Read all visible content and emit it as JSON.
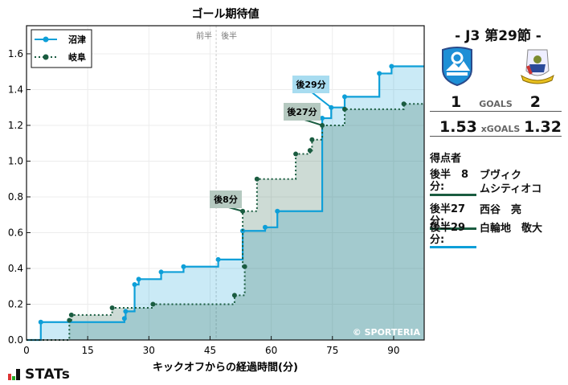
{
  "chart_data": {
    "type": "line",
    "step": true,
    "title": "ゴール期待値",
    "xlabel": "キックオフからの経過時間(分)",
    "ylabel": "",
    "xlim": [
      0,
      97.5
    ],
    "ylim": [
      0,
      1.757
    ],
    "xticks": [
      0,
      15,
      30,
      45,
      60,
      75,
      90
    ],
    "yticks": [
      0.0,
      0.2,
      0.4,
      0.6,
      0.8,
      1.0,
      1.2,
      1.4,
      1.6
    ],
    "grid": true,
    "legend_position": "upper left",
    "halftime_marker": {
      "x": 46.5,
      "left_label": "前半",
      "right_label": "後半"
    },
    "series": [
      {
        "name": "沼津",
        "color": "#0e9fd8",
        "style": "solid",
        "points": [
          [
            0,
            0
          ],
          [
            3.5,
            0.1
          ],
          [
            24,
            0.12
          ],
          [
            24.3,
            0.16
          ],
          [
            26.5,
            0.31
          ],
          [
            27.5,
            0.34
          ],
          [
            33,
            0.38
          ],
          [
            38.5,
            0.41
          ],
          [
            47,
            0.45
          ],
          [
            53,
            0.61
          ],
          [
            58.5,
            0.63
          ],
          [
            61.5,
            0.72
          ],
          [
            72.5,
            1.24
          ],
          [
            74.7,
            1.3
          ],
          [
            78,
            1.36
          ],
          [
            86.5,
            1.49
          ],
          [
            89.5,
            1.53
          ]
        ],
        "final": 1.53
      },
      {
        "name": "岐阜",
        "color": "#1a5c40",
        "style": "dotted",
        "points": [
          [
            0,
            0
          ],
          [
            10.5,
            0.11
          ],
          [
            11,
            0.14
          ],
          [
            21,
            0.18
          ],
          [
            31,
            0.2
          ],
          [
            51,
            0.25
          ],
          [
            53.5,
            0.41
          ],
          [
            53,
            0.72
          ],
          [
            56.5,
            0.9
          ],
          [
            66,
            1.04
          ],
          [
            69.5,
            1.06
          ],
          [
            70,
            1.12
          ],
          [
            72.5,
            1.2
          ],
          [
            78,
            1.29
          ],
          [
            92.5,
            1.32
          ]
        ],
        "final": 1.32
      }
    ],
    "annotations": [
      {
        "text": "後8分",
        "x": 53,
        "y": 0.72,
        "team": "岐阜"
      },
      {
        "text": "後27分",
        "x": 72.5,
        "y": 1.2,
        "team": "岐阜"
      },
      {
        "text": "後29分",
        "x": 74.7,
        "y": 1.3,
        "team": "沼津"
      }
    ],
    "watermark": "© SPORTERIA"
  },
  "match": {
    "round": "- J3 第29節 -",
    "home": {
      "name": "沼津",
      "crest": "numazu-crest",
      "goals": "1",
      "xg": "1.53"
    },
    "away": {
      "name": "岐阜",
      "crest": "gifu-crest",
      "goals": "2",
      "xg": "1.32"
    },
    "goals_label": "GOALS",
    "xg_label": "xGOALS"
  },
  "scorers": {
    "title": "得点者",
    "items": [
      {
        "time": "後半　8分:",
        "name_line1": "ブヴィク",
        "name_line2": "ムシティオコ",
        "team_color": "#1a5c40"
      },
      {
        "time": "後半27分:",
        "name_line1": "西谷　亮",
        "team_color": "#1a5c40"
      },
      {
        "time": "後半29分:",
        "name_line1": "白輪地　敬大",
        "team_color": "#0e9fd8"
      }
    ]
  },
  "brand": {
    "logo_text": "STATs"
  }
}
